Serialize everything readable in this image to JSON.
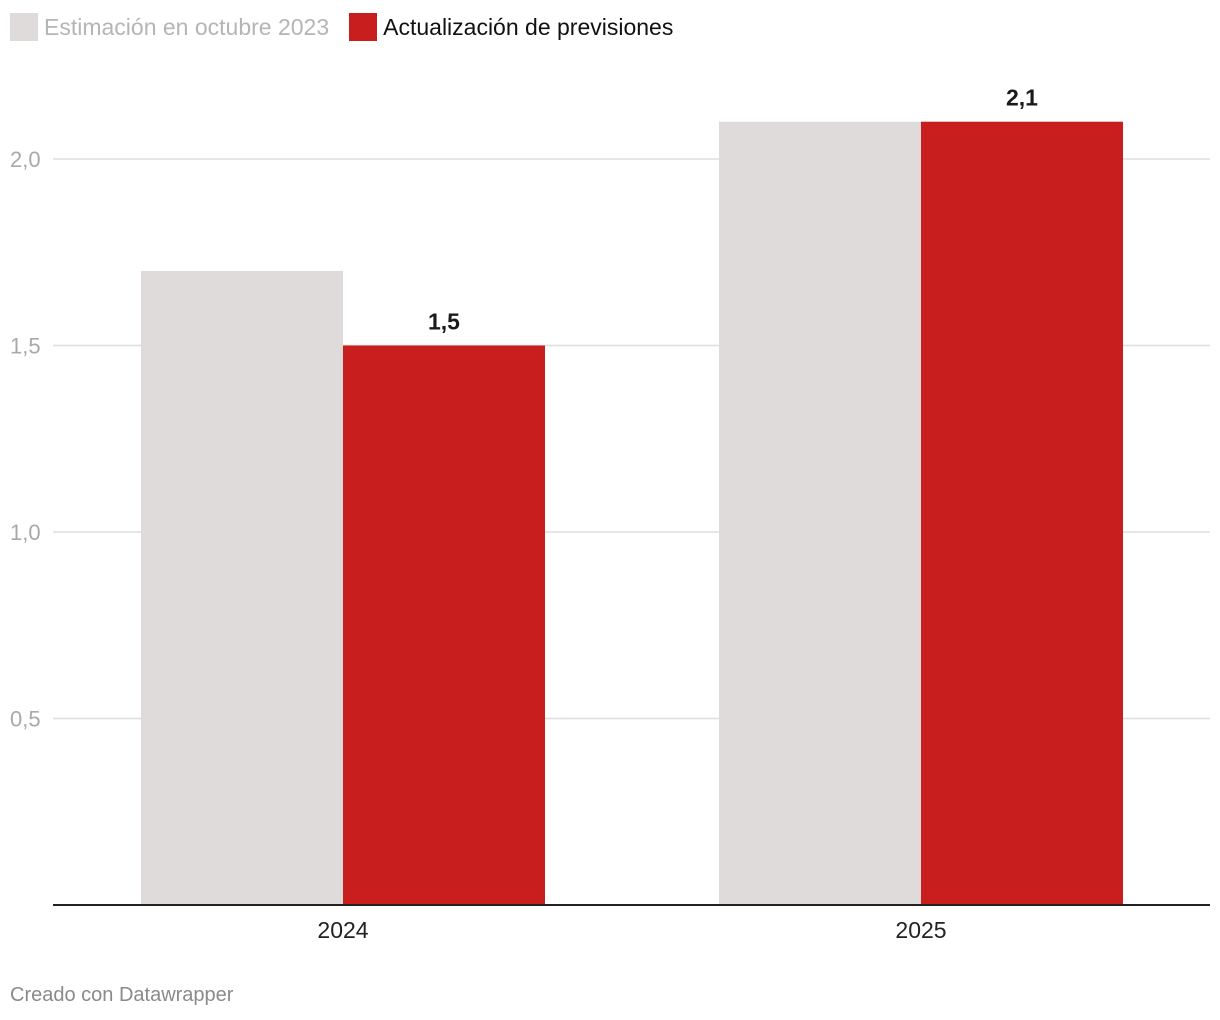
{
  "legend": [
    {
      "label": "Estimación en octubre 2023",
      "color": "#dfdbdb",
      "text_color": "#b5b5b5"
    },
    {
      "label": "Actualización de previsiones",
      "color": "#c81e1e",
      "text_color": "#111111"
    }
  ],
  "footer": "Creado con Datawrapper",
  "chart_data": {
    "type": "bar",
    "categories": [
      "2024",
      "2025"
    ],
    "series": [
      {
        "name": "Estimación en octubre 2023",
        "values": [
          1.7,
          2.1
        ],
        "color": "#dfdbdb"
      },
      {
        "name": "Actualización de previsiones",
        "values": [
          1.5,
          2.1
        ],
        "color": "#c81e1e"
      }
    ],
    "value_labels": [
      {
        "series": 1,
        "category": 0,
        "text": "1,5"
      },
      {
        "series": 1,
        "category": 1,
        "text": "2,1"
      }
    ],
    "yticks": [
      0.5,
      1.0,
      1.5,
      2.0
    ],
    "ytick_labels": [
      "0,5",
      "1,0",
      "1,5",
      "2,0"
    ],
    "ylim": [
      0,
      2.1
    ],
    "grid": true,
    "legend_position": "top-left",
    "title": "",
    "xlabel": "",
    "ylabel": ""
  }
}
